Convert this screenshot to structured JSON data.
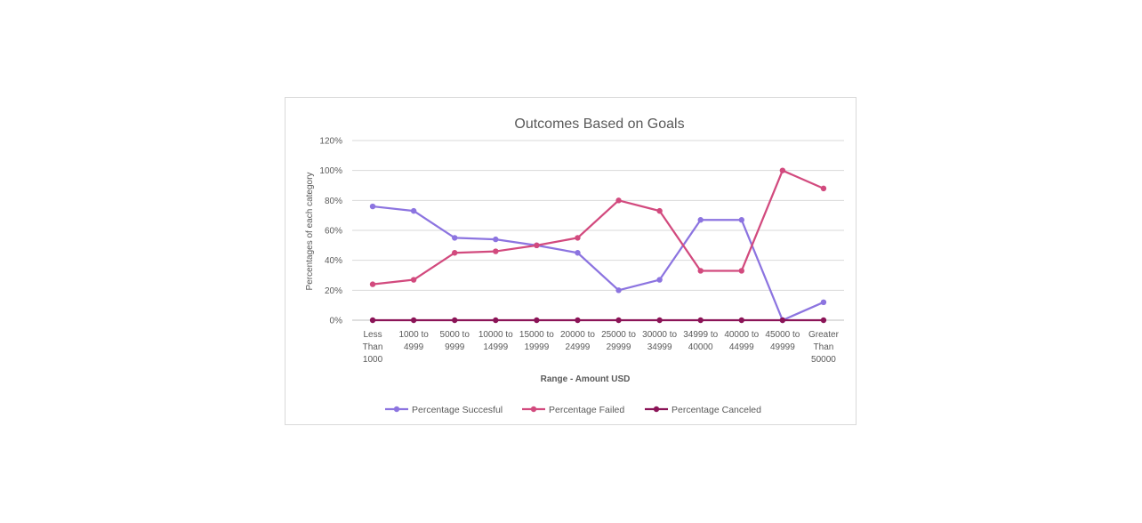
{
  "chart_data": {
    "type": "line",
    "title": "Outcomes Based on Goals",
    "xlabel": "Range - Amount USD",
    "ylabel": "Percentages of each category",
    "ylim": [
      0,
      1.2
    ],
    "y_ticks": [
      0,
      0.2,
      0.4,
      0.6,
      0.8,
      1.0,
      1.2
    ],
    "y_tick_labels": [
      "0%",
      "20%",
      "40%",
      "60%",
      "80%",
      "100%",
      "120%"
    ],
    "grid": true,
    "legend_position": "bottom",
    "categories": [
      [
        "Less",
        "Than",
        "1000"
      ],
      [
        "1000 to",
        "4999"
      ],
      [
        "5000 to",
        "9999"
      ],
      [
        "10000 to",
        "14999"
      ],
      [
        "15000 to",
        "19999"
      ],
      [
        "20000 to",
        "24999"
      ],
      [
        "25000 to",
        "29999"
      ],
      [
        "30000 to",
        "34999"
      ],
      [
        "34999 to",
        "40000"
      ],
      [
        "40000 to",
        "44999"
      ],
      [
        "45000 to",
        "49999"
      ],
      [
        "Greater",
        "Than",
        "50000"
      ]
    ],
    "series": [
      {
        "name": "Percentage Succesful",
        "color": "#8c74e0",
        "values": [
          0.76,
          0.73,
          0.55,
          0.54,
          0.5,
          0.45,
          0.2,
          0.27,
          0.67,
          0.67,
          0.0,
          0.12
        ]
      },
      {
        "name": "Percentage Failed",
        "color": "#d24a7e",
        "values": [
          0.24,
          0.27,
          0.45,
          0.46,
          0.5,
          0.55,
          0.8,
          0.73,
          0.33,
          0.33,
          1.0,
          0.88
        ]
      },
      {
        "name": "Percentage Canceled",
        "color": "#8b1457",
        "values": [
          0,
          0,
          0,
          0,
          0,
          0,
          0,
          0,
          0,
          0,
          0,
          0
        ]
      }
    ]
  }
}
